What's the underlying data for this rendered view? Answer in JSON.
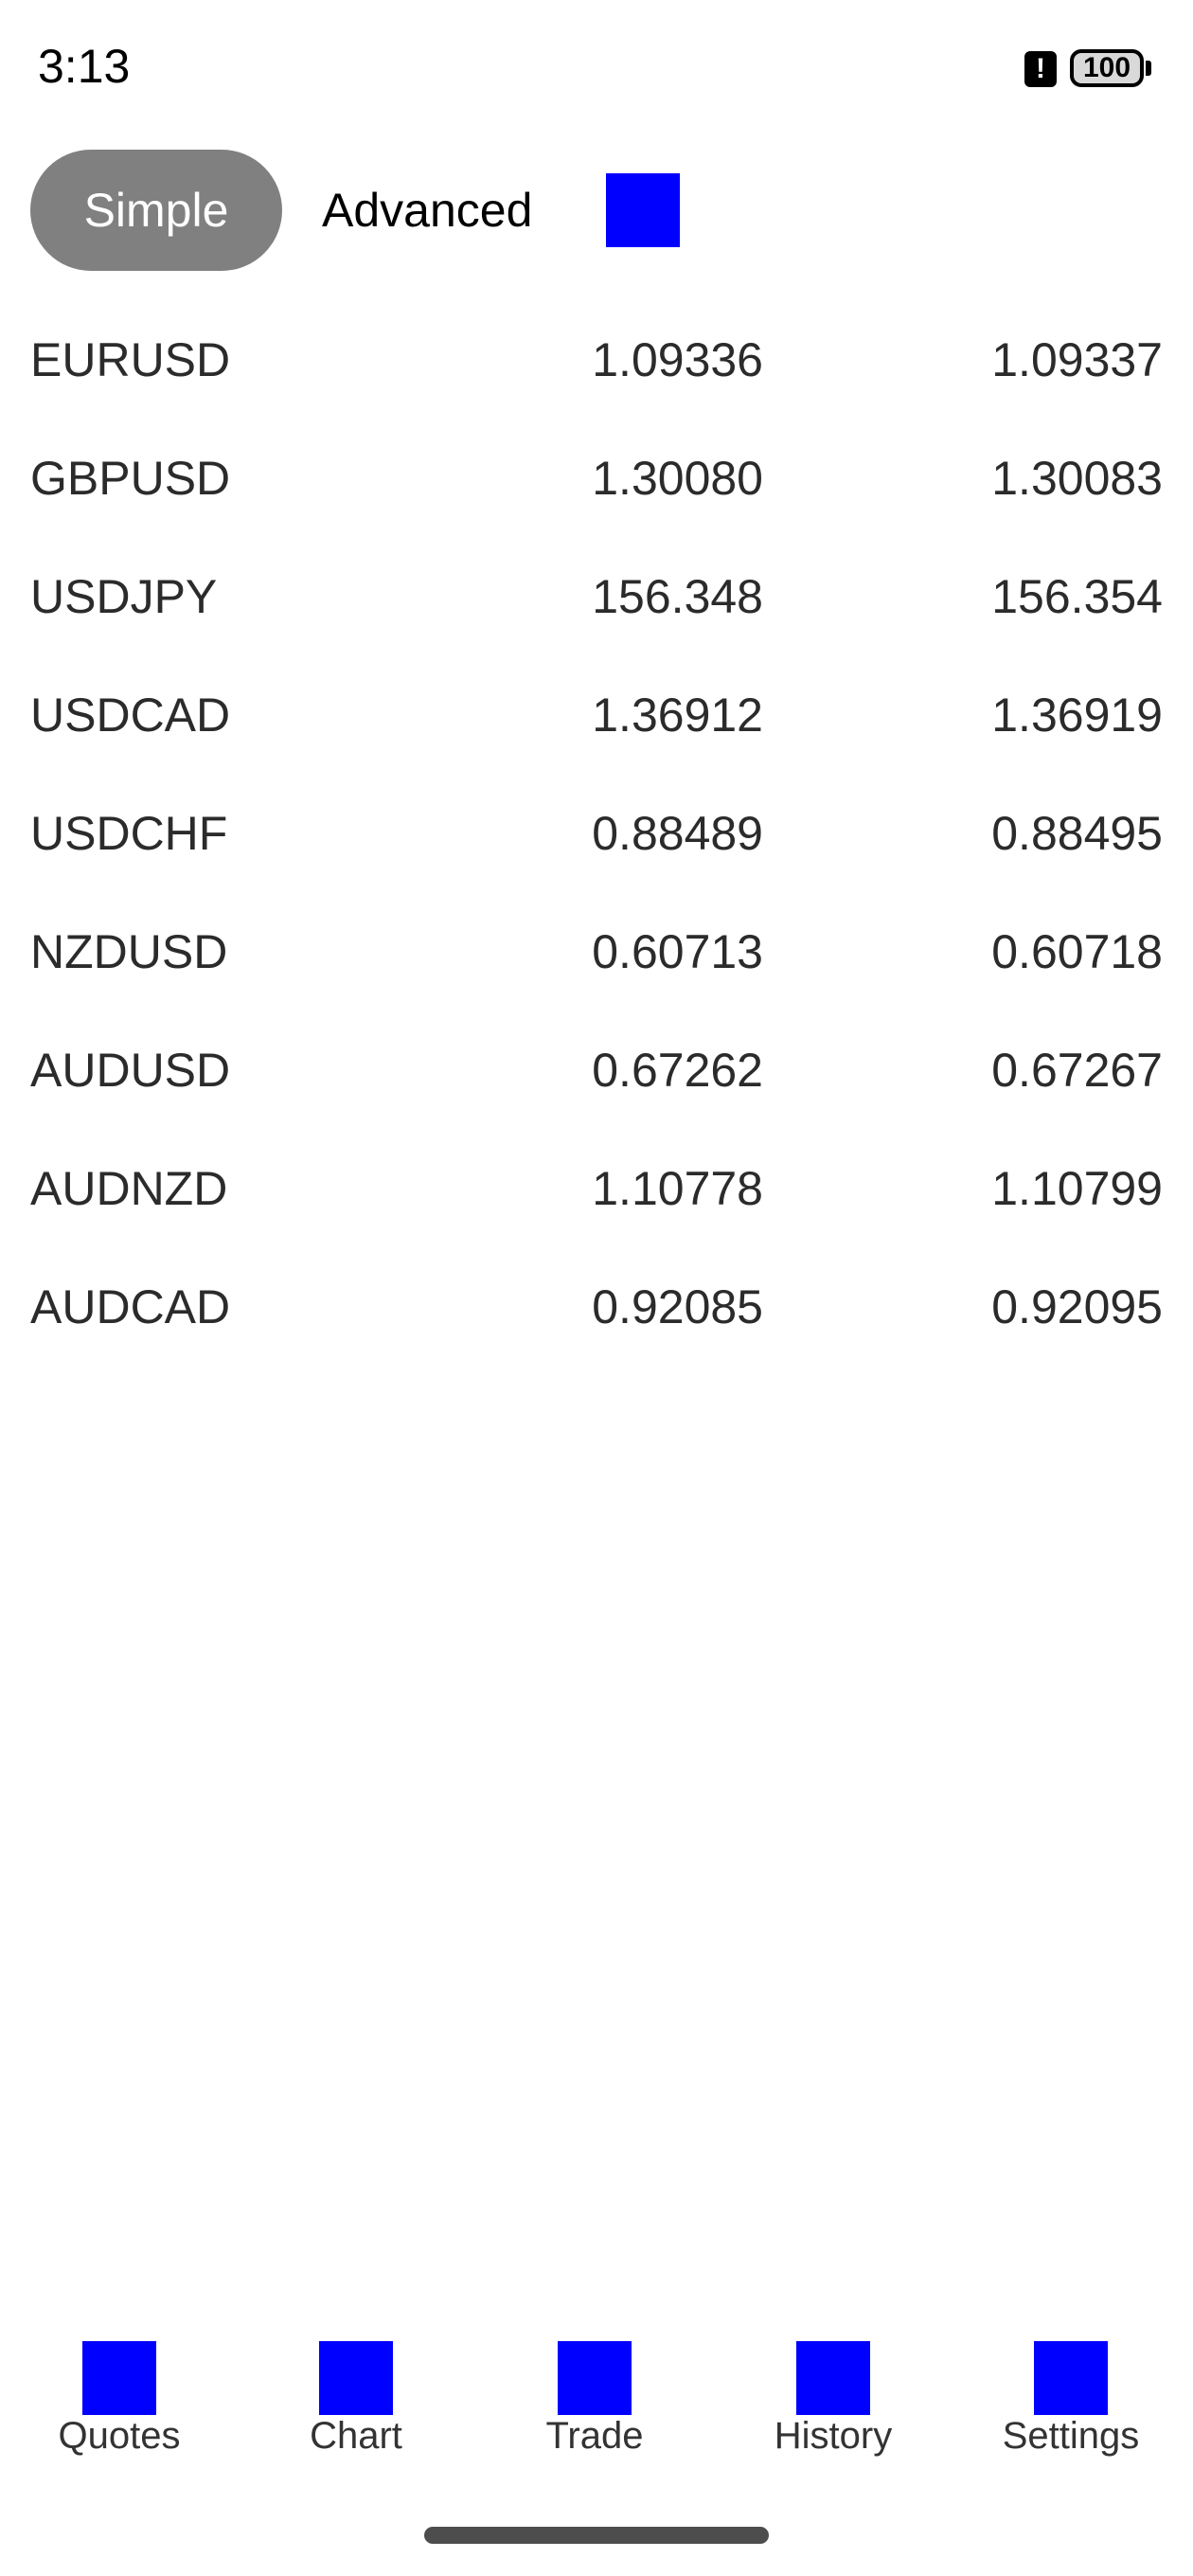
{
  "status_bar": {
    "time": "3:13",
    "alert_glyph": "!",
    "battery_level": "100"
  },
  "mode_selector": {
    "simple_label": "Simple",
    "advanced_label": "Advanced",
    "accent_color": "#0000ff",
    "selected": "Simple"
  },
  "quotes": [
    {
      "symbol": "EURUSD",
      "bid": "1.09336",
      "ask": "1.09337"
    },
    {
      "symbol": "GBPUSD",
      "bid": "1.30080",
      "ask": "1.30083"
    },
    {
      "symbol": "USDJPY",
      "bid": "156.348",
      "ask": "156.354"
    },
    {
      "symbol": "USDCAD",
      "bid": "1.36912",
      "ask": "1.36919"
    },
    {
      "symbol": "USDCHF",
      "bid": "0.88489",
      "ask": "0.88495"
    },
    {
      "symbol": "NZDUSD",
      "bid": "0.60713",
      "ask": "0.60718"
    },
    {
      "symbol": "AUDUSD",
      "bid": "0.67262",
      "ask": "0.67267"
    },
    {
      "symbol": "AUDNZD",
      "bid": "1.10778",
      "ask": "1.10799"
    },
    {
      "symbol": "AUDCAD",
      "bid": "0.92085",
      "ask": "0.92095"
    }
  ],
  "bottom_nav": {
    "items": [
      {
        "label": "Quotes",
        "icon": "quotes-icon"
      },
      {
        "label": "Chart",
        "icon": "chart-icon"
      },
      {
        "label": "Trade",
        "icon": "trade-icon"
      },
      {
        "label": "History",
        "icon": "history-icon"
      },
      {
        "label": "Settings",
        "icon": "settings-icon"
      }
    ]
  }
}
